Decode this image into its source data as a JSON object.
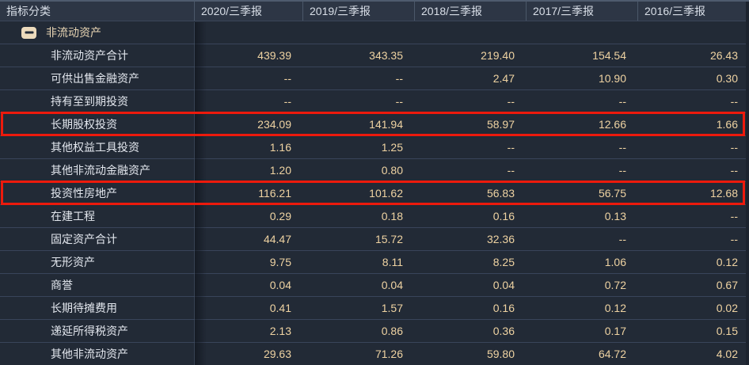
{
  "table": {
    "indicator_header": "指标分类",
    "columns": [
      "2020/三季报",
      "2019/三季报",
      "2018/三季报",
      "2017/三季报",
      "2016/三季报"
    ],
    "section": {
      "label": "非流动资产",
      "collapse_icon": "minus-square"
    },
    "rows": [
      {
        "label": "非流动资产合计",
        "values": [
          "439.39",
          "343.35",
          "219.40",
          "154.54",
          "26.43"
        ],
        "highlighted": false
      },
      {
        "label": "可供出售金融资产",
        "values": [
          "--",
          "--",
          "2.47",
          "10.90",
          "0.30"
        ],
        "highlighted": false
      },
      {
        "label": "持有至到期投资",
        "values": [
          "--",
          "--",
          "--",
          "--",
          "--"
        ],
        "highlighted": false
      },
      {
        "label": "长期股权投资",
        "values": [
          "234.09",
          "141.94",
          "58.97",
          "12.66",
          "1.66"
        ],
        "highlighted": true
      },
      {
        "label": "其他权益工具投资",
        "values": [
          "1.16",
          "1.25",
          "--",
          "--",
          "--"
        ],
        "highlighted": false
      },
      {
        "label": "其他非流动金融资产",
        "values": [
          "1.20",
          "0.80",
          "--",
          "--",
          "--"
        ],
        "highlighted": false
      },
      {
        "label": "投资性房地产",
        "values": [
          "116.21",
          "101.62",
          "56.83",
          "56.75",
          "12.68"
        ],
        "highlighted": true
      },
      {
        "label": "在建工程",
        "values": [
          "0.29",
          "0.18",
          "0.16",
          "0.13",
          "--"
        ],
        "highlighted": false
      },
      {
        "label": "固定资产合计",
        "values": [
          "44.47",
          "15.72",
          "32.36",
          "--",
          "--"
        ],
        "highlighted": false
      },
      {
        "label": "无形资产",
        "values": [
          "9.75",
          "8.11",
          "8.25",
          "1.06",
          "0.12"
        ],
        "highlighted": false
      },
      {
        "label": "商誉",
        "values": [
          "0.04",
          "0.04",
          "0.04",
          "0.72",
          "0.67"
        ],
        "highlighted": false
      },
      {
        "label": "长期待摊费用",
        "values": [
          "0.41",
          "1.57",
          "0.16",
          "0.12",
          "0.02"
        ],
        "highlighted": false
      },
      {
        "label": "递延所得税资产",
        "values": [
          "2.13",
          "0.86",
          "0.36",
          "0.17",
          "0.15"
        ],
        "highlighted": false
      },
      {
        "label": "其他非流动资产",
        "values": [
          "29.63",
          "71.26",
          "59.80",
          "64.72",
          "4.02"
        ],
        "highlighted": false
      }
    ],
    "colors": {
      "background": "#222A36",
      "header_background": "#2D3645",
      "row_separator": "#39445A",
      "header_text": "#D9DFE8",
      "label_text": "#E3E7EE",
      "value_text": "#EFD3A2",
      "section_text": "#E9D6B4",
      "collapse_icon_fill": "#EDDBBC",
      "highlight_red": "#ED1A0C"
    }
  }
}
